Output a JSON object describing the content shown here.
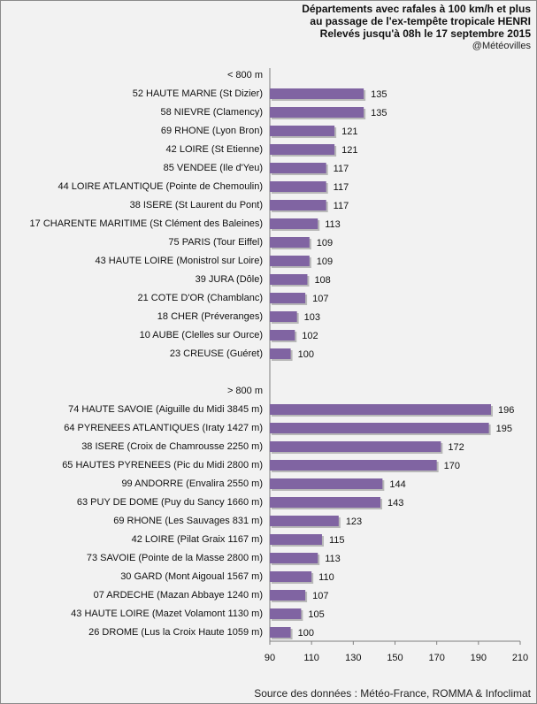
{
  "chart_data": {
    "type": "bar",
    "orientation": "horizontal",
    "title_lines": [
      "Départements avec rafales à 100 km/h et plus",
      "au passage de l'ex-tempête tropicale HENRI",
      "Relevés jusqu'à 08h le 17 septembre 2015"
    ],
    "credit": "@Météovilles",
    "source": "Source des données : Météo-France, ROMMA & Infoclimat",
    "xlim": [
      90,
      210
    ],
    "xticks": [
      90,
      110,
      130,
      150,
      170,
      190,
      210
    ],
    "bar_color": "#8064a2",
    "groups": [
      {
        "label": "< 800 m",
        "categories": [
          "52 HAUTE MARNE (St Dizier)",
          "58 NIEVRE (Clamency)",
          "69 RHONE (Lyon Bron)",
          "42 LOIRE (St Etienne)",
          "85 VENDEE (Ile d'Yeu)",
          "44 LOIRE ATLANTIQUE (Pointe de Chemoulin)",
          "38 ISERE (St Laurent du Pont)",
          "17 CHARENTE MARITIME (St Clément des Baleines)",
          "75 PARIS (Tour Eiffel)",
          "43 HAUTE LOIRE (Monistrol sur Loire)",
          "39 JURA (Dôle)",
          "21 COTE D'OR (Chamblanc)",
          "18 CHER (Préveranges)",
          "10 AUBE (Clelles sur Ource)",
          "23 CREUSE (Guéret)"
        ],
        "values": [
          135,
          135,
          121,
          121,
          117,
          117,
          117,
          113,
          109,
          109,
          108,
          107,
          103,
          102,
          100
        ]
      },
      {
        "label": "> 800 m",
        "categories": [
          "74 HAUTE SAVOIE (Aiguille du Midi 3845 m)",
          "64 PYRENEES ATLANTIQUES (Iraty 1427 m)",
          "38 ISERE (Croix de Chamrousse 2250 m)",
          "65 HAUTES PYRENEES (Pic du Midi 2800 m)",
          "99 ANDORRE (Envalira 2550 m)",
          "63 PUY DE DOME (Puy du Sancy 1660 m)",
          "69 RHONE (Les Sauvages 831 m)",
          "42 LOIRE (Pilat Graix 1167 m)",
          "73 SAVOIE (Pointe de la Masse 2800 m)",
          "30 GARD (Mont Aigoual 1567 m)",
          "07 ARDECHE (Mazan Abbaye 1240 m)",
          "43 HAUTE LOIRE (Mazet Volamont 1130 m)",
          "26 DROME (Lus la Croix Haute 1059 m)"
        ],
        "values": [
          196,
          195,
          172,
          170,
          144,
          143,
          123,
          115,
          113,
          110,
          107,
          105,
          100
        ]
      }
    ]
  }
}
